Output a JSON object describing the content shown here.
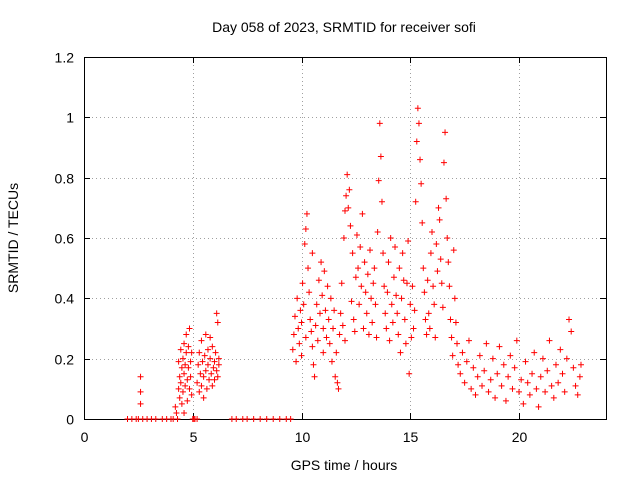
{
  "chart_data": {
    "type": "scatter",
    "title": "Day 058 of 2023, SRMTID for receiver sofi",
    "xlabel": "GPS time / hours",
    "ylabel": "SRMTID / TECUs",
    "xlim": [
      0,
      24
    ],
    "ylim": [
      0,
      1.2
    ],
    "xticks": [
      0,
      5,
      10,
      15,
      20
    ],
    "yticks": [
      0,
      0.2,
      0.4,
      0.6,
      0.8,
      1,
      1.2
    ],
    "xtick_labels": [
      "0",
      "5",
      "10",
      "15",
      "20"
    ],
    "ytick_labels": [
      "0",
      "0.2",
      "0.4",
      "0.6",
      "0.8",
      "1",
      "1.2"
    ],
    "grid": true,
    "marker": "+",
    "color": "#ff0000",
    "series": [
      {
        "name": "SRMTID",
        "points": [
          [
            2.0,
            0
          ],
          [
            2.2,
            0
          ],
          [
            2.4,
            0
          ],
          [
            2.5,
            0
          ],
          [
            2.6,
            0.14
          ],
          [
            2.6,
            0.09
          ],
          [
            2.6,
            0.05
          ],
          [
            2.7,
            0
          ],
          [
            2.9,
            0
          ],
          [
            3.1,
            0
          ],
          [
            3.3,
            0
          ],
          [
            3.6,
            0
          ],
          [
            3.8,
            0
          ],
          [
            4.0,
            0
          ],
          [
            4.1,
            0
          ],
          [
            4.2,
            0.04
          ],
          [
            4.25,
            0.02
          ],
          [
            4.3,
            0
          ],
          [
            4.35,
            0.19
          ],
          [
            4.35,
            0.1
          ],
          [
            4.4,
            0.14
          ],
          [
            4.4,
            0.07
          ],
          [
            4.45,
            0.23
          ],
          [
            4.45,
            0.12
          ],
          [
            4.5,
            0.17
          ],
          [
            4.5,
            0.05
          ],
          [
            4.55,
            0.2
          ],
          [
            4.55,
            0.09
          ],
          [
            4.6,
            0.15
          ],
          [
            4.6,
            0.25
          ],
          [
            4.6,
            0.02
          ],
          [
            4.65,
            0.11
          ],
          [
            4.65,
            0.18
          ],
          [
            4.7,
            0.22
          ],
          [
            4.7,
            0.28
          ],
          [
            4.75,
            0.13
          ],
          [
            4.75,
            0.06
          ],
          [
            4.8,
            0.17
          ],
          [
            4.8,
            0.24
          ],
          [
            4.85,
            0.3
          ],
          [
            4.85,
            0.1
          ],
          [
            4.9,
            0.19
          ],
          [
            4.9,
            0.14
          ],
          [
            4.95,
            0.22
          ],
          [
            4.95,
            0.08
          ],
          [
            5.0,
            0
          ],
          [
            5.05,
            0
          ],
          [
            5.1,
            0
          ],
          [
            5.2,
            0
          ],
          [
            5.2,
            0.12
          ],
          [
            5.25,
            0.18
          ],
          [
            5.3,
            0.09
          ],
          [
            5.3,
            0.22
          ],
          [
            5.35,
            0.15
          ],
          [
            5.4,
            0.26
          ],
          [
            5.4,
            0.11
          ],
          [
            5.45,
            0.19
          ],
          [
            5.5,
            0.07
          ],
          [
            5.5,
            0.14
          ],
          [
            5.55,
            0.21
          ],
          [
            5.6,
            0.16
          ],
          [
            5.6,
            0.28
          ],
          [
            5.65,
            0.1
          ],
          [
            5.7,
            0.23
          ],
          [
            5.7,
            0.18
          ],
          [
            5.75,
            0.13
          ],
          [
            5.8,
            0.27
          ],
          [
            5.8,
            0.2
          ],
          [
            5.85,
            0.15
          ],
          [
            5.9,
            0.11
          ],
          [
            5.9,
            0.24
          ],
          [
            5.95,
            0.17
          ],
          [
            6.0,
            0.19
          ],
          [
            6.0,
            0.13
          ],
          [
            6.05,
            0.22
          ],
          [
            6.1,
            0.16
          ],
          [
            6.1,
            0.35
          ],
          [
            6.15,
            0.32
          ],
          [
            6.15,
            0.14
          ],
          [
            6.2,
            0.18
          ],
          [
            6.2,
            0.2
          ],
          [
            6.8,
            0
          ],
          [
            7.0,
            0
          ],
          [
            7.3,
            0
          ],
          [
            7.5,
            0
          ],
          [
            7.8,
            0
          ],
          [
            8.1,
            0
          ],
          [
            8.4,
            0
          ],
          [
            8.7,
            0
          ],
          [
            9.0,
            0
          ],
          [
            9.3,
            0
          ],
          [
            9.5,
            0
          ],
          [
            9.6,
            0.23
          ],
          [
            9.65,
            0.28
          ],
          [
            9.7,
            0.34
          ],
          [
            9.75,
            0.19
          ],
          [
            9.8,
            0.4
          ],
          [
            9.85,
            0.3
          ],
          [
            9.9,
            0.25
          ],
          [
            9.95,
            0.36
          ],
          [
            10.0,
            0.32
          ],
          [
            10.0,
            0.21
          ],
          [
            10.05,
            0.45
          ],
          [
            10.1,
            0.38
          ],
          [
            10.15,
            0.58
          ],
          [
            10.2,
            0.63
          ],
          [
            10.2,
            0.27
          ],
          [
            10.25,
            0.68
          ],
          [
            10.3,
            0.5
          ],
          [
            10.35,
            0.42
          ],
          [
            10.4,
            0.33
          ],
          [
            10.45,
            0.29
          ],
          [
            10.5,
            0.55
          ],
          [
            10.5,
            0.24
          ],
          [
            10.55,
            0.18
          ],
          [
            10.6,
            0.14
          ],
          [
            10.65,
            0.31
          ],
          [
            10.7,
            0.38
          ],
          [
            10.75,
            0.26
          ],
          [
            10.8,
            0.46
          ],
          [
            10.85,
            0.35
          ],
          [
            10.9,
            0.52
          ],
          [
            10.95,
            0.41
          ],
          [
            11.0,
            0.3
          ],
          [
            11.0,
            0.22
          ],
          [
            11.05,
            0.49
          ],
          [
            11.1,
            0.36
          ],
          [
            11.15,
            0.27
          ],
          [
            11.2,
            0.44
          ],
          [
            11.25,
            0.33
          ],
          [
            11.3,
            0.25
          ],
          [
            11.35,
            0.4
          ],
          [
            11.4,
            0.19
          ],
          [
            11.45,
            0.3
          ],
          [
            11.5,
            0.36
          ],
          [
            11.55,
            0.14
          ],
          [
            11.6,
            0.22
          ],
          [
            11.65,
            0.12
          ],
          [
            11.7,
            0.1
          ],
          [
            11.75,
            0.28
          ],
          [
            11.8,
            0.35
          ],
          [
            11.85,
            0.45
          ],
          [
            11.9,
            0.31
          ],
          [
            11.95,
            0.6
          ],
          [
            12.0,
            0.69
          ],
          [
            12.0,
            0.26
          ],
          [
            12.05,
            0.74
          ],
          [
            12.1,
            0.81
          ],
          [
            12.15,
            0.7
          ],
          [
            12.2,
            0.76
          ],
          [
            12.25,
            0.64
          ],
          [
            12.3,
            0.39
          ],
          [
            12.35,
            0.55
          ],
          [
            12.4,
            0.33
          ],
          [
            12.45,
            0.29
          ],
          [
            12.5,
            0.47
          ],
          [
            12.55,
            0.61
          ],
          [
            12.6,
            0.5
          ],
          [
            12.65,
            0.38
          ],
          [
            12.7,
            0.57
          ],
          [
            12.75,
            0.44
          ],
          [
            12.8,
            0.68
          ],
          [
            12.85,
            0.3
          ],
          [
            12.9,
            0.52
          ],
          [
            12.95,
            0.42
          ],
          [
            13.0,
            0.35
          ],
          [
            13.05,
            0.48
          ],
          [
            13.1,
            0.28
          ],
          [
            13.15,
            0.56
          ],
          [
            13.2,
            0.4
          ],
          [
            13.25,
            0.32
          ],
          [
            13.3,
            0.45
          ],
          [
            13.35,
            0.5
          ],
          [
            13.4,
            0.38
          ],
          [
            13.45,
            0.27
          ],
          [
            13.5,
            0.62
          ],
          [
            13.55,
            0.79
          ],
          [
            13.6,
            0.98
          ],
          [
            13.65,
            0.87
          ],
          [
            13.7,
            0.72
          ],
          [
            13.75,
            0.55
          ],
          [
            13.8,
            0.44
          ],
          [
            13.85,
            0.35
          ],
          [
            13.9,
            0.3
          ],
          [
            13.95,
            0.42
          ],
          [
            14.0,
            0.52
          ],
          [
            14.05,
            0.26
          ],
          [
            14.1,
            0.6
          ],
          [
            14.15,
            0.38
          ],
          [
            14.2,
            0.32
          ],
          [
            14.25,
            0.47
          ],
          [
            14.3,
            0.57
          ],
          [
            14.35,
            0.41
          ],
          [
            14.4,
            0.35
          ],
          [
            14.45,
            0.28
          ],
          [
            14.5,
            0.5
          ],
          [
            14.55,
            0.22
          ],
          [
            14.6,
            0.4
          ],
          [
            14.65,
            0.55
          ],
          [
            14.7,
            0.46
          ],
          [
            14.75,
            0.33
          ],
          [
            14.8,
            0.25
          ],
          [
            14.85,
            0.45
          ],
          [
            14.9,
            0.59
          ],
          [
            14.95,
            0.15
          ],
          [
            15.0,
            0.38
          ],
          [
            15.05,
            0.27
          ],
          [
            15.1,
            0.44
          ],
          [
            15.15,
            0.3
          ],
          [
            15.2,
            0.36
          ],
          [
            15.25,
            0.72
          ],
          [
            15.3,
            0.92
          ],
          [
            15.35,
            1.03
          ],
          [
            15.4,
            0.98
          ],
          [
            15.45,
            0.86
          ],
          [
            15.5,
            0.78
          ],
          [
            15.55,
            0.65
          ],
          [
            15.6,
            0.5
          ],
          [
            15.65,
            0.42
          ],
          [
            15.7,
            0.33
          ],
          [
            15.75,
            0.28
          ],
          [
            15.8,
            0.46
          ],
          [
            15.85,
            0.35
          ],
          [
            15.9,
            0.3
          ],
          [
            15.95,
            0.55
          ],
          [
            16.0,
            0.62
          ],
          [
            16.05,
            0.44
          ],
          [
            16.1,
            0.38
          ],
          [
            16.15,
            0.27
          ],
          [
            16.2,
            0.58
          ],
          [
            16.25,
            0.49
          ],
          [
            16.3,
            0.7
          ],
          [
            16.35,
            0.66
          ],
          [
            16.4,
            0.53
          ],
          [
            16.45,
            0.45
          ],
          [
            16.5,
            0.37
          ],
          [
            16.55,
            0.85
          ],
          [
            16.6,
            0.95
          ],
          [
            16.65,
            0.73
          ],
          [
            16.7,
            0.6
          ],
          [
            16.75,
            0.52
          ],
          [
            16.8,
            0.44
          ],
          [
            16.85,
            0.33
          ],
          [
            16.9,
            0.27
          ],
          [
            16.95,
            0.21
          ],
          [
            17.0,
            0.56
          ],
          [
            17.05,
            0.4
          ],
          [
            17.1,
            0.32
          ],
          [
            17.15,
            0.25
          ],
          [
            17.2,
            0.18
          ],
          [
            17.3,
            0.15
          ],
          [
            17.4,
            0.22
          ],
          [
            17.5,
            0.12
          ],
          [
            17.6,
            0.19
          ],
          [
            17.7,
            0.26
          ],
          [
            17.8,
            0.1
          ],
          [
            17.9,
            0.17
          ],
          [
            18.0,
            0.08
          ],
          [
            18.1,
            0.14
          ],
          [
            18.2,
            0.21
          ],
          [
            18.3,
            0.11
          ],
          [
            18.4,
            0.16
          ],
          [
            18.5,
            0.25
          ],
          [
            18.6,
            0.09
          ],
          [
            18.7,
            0.13
          ],
          [
            18.8,
            0.2
          ],
          [
            18.9,
            0.07
          ],
          [
            19.0,
            0.15
          ],
          [
            19.1,
            0.24
          ],
          [
            19.2,
            0.11
          ],
          [
            19.3,
            0.18
          ],
          [
            19.4,
            0.06
          ],
          [
            19.5,
            0.14
          ],
          [
            19.6,
            0.21
          ],
          [
            19.7,
            0.1
          ],
          [
            19.8,
            0.17
          ],
          [
            19.9,
            0.26
          ],
          [
            20.0,
            0.09
          ],
          [
            20.1,
            0.13
          ],
          [
            20.2,
            0.05
          ],
          [
            20.3,
            0.19
          ],
          [
            20.4,
            0.12
          ],
          [
            20.5,
            0.08
          ],
          [
            20.6,
            0.15
          ],
          [
            20.7,
            0.22
          ],
          [
            20.8,
            0.1
          ],
          [
            20.9,
            0.04
          ],
          [
            21.0,
            0.14
          ],
          [
            21.1,
            0.2
          ],
          [
            21.2,
            0.09
          ],
          [
            21.3,
            0.16
          ],
          [
            21.4,
            0.26
          ],
          [
            21.5,
            0.11
          ],
          [
            21.6,
            0.07
          ],
          [
            21.7,
            0.18
          ],
          [
            21.8,
            0.12
          ],
          [
            21.9,
            0.23
          ],
          [
            22.0,
            0.15
          ],
          [
            22.1,
            0.09
          ],
          [
            22.2,
            0.2
          ],
          [
            22.3,
            0.33
          ],
          [
            22.4,
            0.29
          ],
          [
            22.5,
            0.17
          ],
          [
            22.6,
            0.11
          ],
          [
            22.7,
            0.08
          ],
          [
            22.8,
            0.14
          ],
          [
            22.85,
            0.18
          ]
        ]
      }
    ]
  }
}
